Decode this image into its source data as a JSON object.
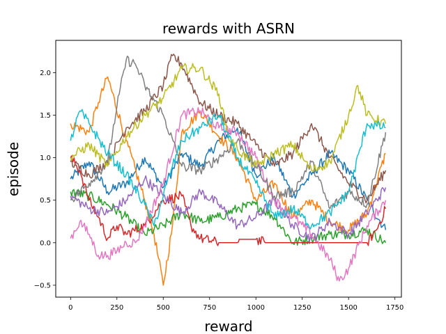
{
  "chart_data": {
    "type": "line",
    "title": "rewards with ASRN",
    "xlabel": "reward",
    "ylabel": "episode",
    "xlim": [
      -80,
      1785
    ],
    "ylim": [
      -0.64,
      2.38
    ],
    "xticks": [
      0,
      250,
      500,
      750,
      1000,
      1250,
      1500,
      1750
    ],
    "xtick_labels": [
      "0",
      "250",
      "500",
      "750",
      "1000",
      "1250",
      "1500",
      "1750"
    ],
    "yticks": [
      -0.5,
      0.0,
      0.5,
      1.0,
      1.5,
      2.0
    ],
    "ytick_labels": [
      "−0.5",
      "0.0",
      "0.5",
      "1.0",
      "1.5",
      "2.0"
    ],
    "grid": false,
    "legend": "none",
    "series": [
      {
        "color": "#1f77b4",
        "x": [
          0,
          100,
          200,
          300,
          400,
          500,
          600,
          700,
          800,
          900,
          1000,
          1100,
          1200,
          1300,
          1400,
          1500,
          1600,
          1700
        ],
        "y": [
          0.75,
          0.95,
          0.6,
          0.7,
          1.0,
          0.65,
          1.05,
          0.9,
          1.2,
          1.35,
          0.8,
          1.0,
          0.55,
          0.8,
          1.05,
          0.85,
          0.5,
          0.15
        ]
      },
      {
        "color": "#ff7f0e",
        "x": [
          0,
          100,
          150,
          200,
          300,
          400,
          450,
          500,
          550,
          600,
          700,
          800,
          900,
          1000,
          1100,
          1200,
          1300,
          1400,
          1500,
          1600,
          1700
        ],
        "y": [
          1.4,
          1.3,
          1.65,
          1.95,
          1.2,
          0.5,
          0.1,
          -0.5,
          0.2,
          1.3,
          1.55,
          1.25,
          1.0,
          0.5,
          0.7,
          0.3,
          0.5,
          0.25,
          0.15,
          0.35,
          1.05
        ]
      },
      {
        "color": "#2ca02c",
        "x": [
          0,
          100,
          200,
          300,
          400,
          500,
          600,
          700,
          800,
          900,
          1000,
          1100,
          1200,
          1300,
          1400,
          1500,
          1600,
          1700
        ],
        "y": [
          0.6,
          0.55,
          0.45,
          0.3,
          0.1,
          0.2,
          0.35,
          0.25,
          0.3,
          0.4,
          0.45,
          0.3,
          0.0,
          0.05,
          0.1,
          0.1,
          0.15,
          0.0
        ]
      },
      {
        "color": "#d62728",
        "x": [
          0,
          50,
          100,
          150,
          200,
          250,
          300,
          400,
          500,
          600,
          650,
          700,
          800,
          900,
          910,
          1000,
          1050,
          1100,
          1200,
          1300,
          1400,
          1500,
          1600,
          1650,
          1700
        ],
        "y": [
          1.0,
          0.85,
          0.5,
          0.3,
          0.05,
          0.2,
          0.1,
          0.2,
          0.5,
          0.55,
          0.2,
          0.05,
          0.0,
          0.0,
          0.04,
          0.04,
          0.0,
          0.0,
          0.0,
          0.0,
          0.0,
          0.0,
          0.0,
          0.15,
          0.4
        ]
      },
      {
        "color": "#9467bd",
        "x": [
          0,
          100,
          200,
          300,
          400,
          500,
          600,
          700,
          800,
          900,
          1000,
          1100,
          1200,
          1300,
          1400,
          1500,
          1600,
          1700
        ],
        "y": [
          0.55,
          0.4,
          0.35,
          0.5,
          0.75,
          0.55,
          0.35,
          0.6,
          0.45,
          0.2,
          0.3,
          0.5,
          0.2,
          0.05,
          0.25,
          0.1,
          0.35,
          0.65
        ]
      },
      {
        "color": "#8c564b",
        "x": [
          0,
          100,
          200,
          300,
          400,
          500,
          550,
          600,
          700,
          800,
          900,
          1000,
          1100,
          1200,
          1300,
          1400,
          1500,
          1600,
          1700
        ],
        "y": [
          0.95,
          0.8,
          0.95,
          1.35,
          1.55,
          1.85,
          2.2,
          2.1,
          1.65,
          1.5,
          1.4,
          1.15,
          0.9,
          1.05,
          1.4,
          1.0,
          0.7,
          0.5,
          0.85
        ]
      },
      {
        "color": "#e377c2",
        "x": [
          0,
          50,
          100,
          150,
          200,
          250,
          300,
          350,
          400,
          500,
          600,
          700,
          800,
          900,
          1000,
          1100,
          1200,
          1300,
          1400,
          1450,
          1500,
          1600,
          1700
        ],
        "y": [
          0.05,
          0.25,
          0.1,
          -0.15,
          -0.15,
          -0.1,
          0.0,
          0.0,
          0.2,
          0.7,
          1.5,
          1.55,
          1.35,
          1.3,
          1.0,
          0.5,
          0.3,
          0.1,
          -0.2,
          -0.45,
          -0.3,
          0.2,
          0.5
        ]
      },
      {
        "color": "#7f7f7f",
        "x": [
          0,
          100,
          200,
          250,
          300,
          350,
          400,
          500,
          600,
          700,
          800,
          900,
          1000,
          1100,
          1200,
          1300,
          1400,
          1500,
          1600,
          1700
        ],
        "y": [
          0.5,
          0.7,
          0.95,
          1.6,
          2.15,
          2.1,
          1.85,
          1.5,
          0.9,
          0.85,
          1.0,
          1.2,
          0.9,
          0.55,
          0.6,
          0.95,
          0.4,
          0.6,
          0.45,
          1.3
        ]
      },
      {
        "color": "#bcbd22",
        "x": [
          0,
          100,
          200,
          300,
          400,
          500,
          600,
          700,
          800,
          850,
          900,
          1000,
          1100,
          1200,
          1300,
          1400,
          1500,
          1550,
          1600,
          1700
        ],
        "y": [
          1.0,
          1.15,
          0.9,
          1.25,
          1.5,
          1.7,
          2.05,
          2.05,
          1.75,
          1.25,
          1.1,
          0.9,
          1.05,
          1.15,
          0.85,
          0.95,
          1.5,
          1.85,
          1.5,
          1.4
        ]
      },
      {
        "color": "#17becf",
        "x": [
          0,
          50,
          100,
          200,
          300,
          400,
          450,
          500,
          550,
          600,
          700,
          800,
          900,
          1000,
          1100,
          1200,
          1300,
          1400,
          1500,
          1600,
          1700
        ],
        "y": [
          1.2,
          1.55,
          1.4,
          1.05,
          0.8,
          0.45,
          0.2,
          0.55,
          0.9,
          1.2,
          1.35,
          1.5,
          1.0,
          0.7,
          0.3,
          0.4,
          0.2,
          0.35,
          0.6,
          1.4,
          1.35
        ]
      }
    ]
  }
}
